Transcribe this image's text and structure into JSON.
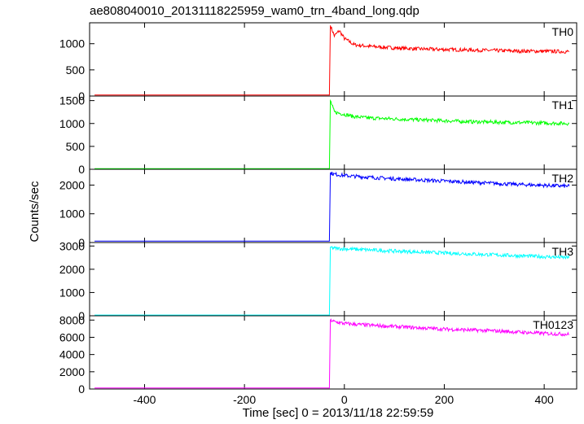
{
  "title": "ae808040010_20131118225959_wam0_trn_4band_long.qdp",
  "ylabel": "Counts/sec",
  "xlabel": "Time [sec] 0 = 2013/11/18 22:59:59",
  "chart_data": {
    "type": "line",
    "title": "ae808040010_20131118225959_wam0_trn_4band_long.qdp",
    "xlabel": "Time [sec] 0 = 2013/11/18 22:59:59",
    "ylabel": "Counts/sec",
    "xlim": [
      -510,
      465
    ],
    "x_ticks": [
      -400,
      -200,
      0,
      200,
      400
    ],
    "panels": [
      {
        "name": "TH0",
        "color": "#ff0000",
        "ylim": [
          0,
          1400
        ],
        "y_ticks": [
          0,
          500,
          1000
        ],
        "x": [
          -500,
          -30,
          -28,
          -20,
          -10,
          0,
          20,
          50,
          100,
          150,
          200,
          250,
          300,
          350,
          400,
          450
        ],
        "values": [
          20,
          20,
          1350,
          1150,
          1250,
          1100,
          980,
          950,
          920,
          900,
          890,
          880,
          870,
          860,
          855,
          850
        ]
      },
      {
        "name": "TH1",
        "color": "#00ff00",
        "ylim": [
          0,
          1600
        ],
        "y_ticks": [
          0,
          500,
          1000,
          1500
        ],
        "x": [
          -500,
          -30,
          -28,
          -20,
          0,
          20,
          50,
          100,
          150,
          200,
          250,
          300,
          350,
          400,
          450
        ],
        "values": [
          15,
          15,
          1500,
          1250,
          1200,
          1150,
          1120,
          1100,
          1080,
          1060,
          1040,
          1030,
          1020,
          1010,
          1000
        ]
      },
      {
        "name": "TH2",
        "color": "#0000ff",
        "ylim": [
          0,
          2550
        ],
        "y_ticks": [
          0,
          1000,
          2000
        ],
        "x": [
          -500,
          -30,
          -28,
          -20,
          0,
          50,
          100,
          150,
          200,
          250,
          300,
          350,
          400,
          450
        ],
        "values": [
          50,
          50,
          2420,
          2380,
          2330,
          2270,
          2220,
          2180,
          2140,
          2100,
          2060,
          2020,
          1990,
          1960
        ]
      },
      {
        "name": "TH3",
        "color": "#00ffff",
        "ylim": [
          0,
          3150
        ],
        "y_ticks": [
          0,
          1000,
          2000,
          3000
        ],
        "x": [
          -500,
          -30,
          -28,
          -20,
          0,
          50,
          100,
          150,
          200,
          250,
          300,
          350,
          400,
          450
        ],
        "values": [
          30,
          30,
          2950,
          2900,
          2880,
          2830,
          2780,
          2740,
          2700,
          2660,
          2620,
          2580,
          2540,
          2500
        ]
      },
      {
        "name": "TH0123",
        "color": "#ff00ff",
        "ylim": [
          0,
          8500
        ],
        "y_ticks": [
          0,
          2000,
          4000,
          6000,
          8000
        ],
        "x": [
          -500,
          -30,
          -28,
          -20,
          0,
          50,
          100,
          150,
          200,
          250,
          300,
          350,
          400,
          450
        ],
        "values": [
          120,
          120,
          8000,
          7800,
          7600,
          7400,
          7250,
          7100,
          6950,
          6850,
          6750,
          6600,
          6450,
          6350
        ]
      }
    ]
  }
}
